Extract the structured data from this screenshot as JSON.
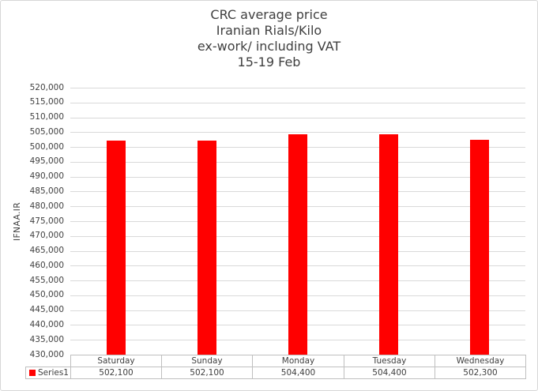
{
  "chart_data": {
    "type": "bar",
    "title": "CRC average price\nIranian Rials/Kilo\nex-work/ including VAT\n15-19 Feb",
    "title_lines": [
      "CRC average price",
      "Iranian Rials/Kilo",
      "ex-work/ including VAT",
      "15-19 Feb"
    ],
    "ylabel": "IFNAA.IR",
    "xlabel": "",
    "categories": [
      "Saturday",
      "Sunday",
      "Monday",
      "Tuesday",
      "Wednesday"
    ],
    "series": [
      {
        "name": "Series1",
        "color": "#FF0000",
        "values": [
          502100,
          502100,
          504400,
          504400,
          502300
        ],
        "value_labels": [
          "502,100",
          "502,100",
          "504,400",
          "504,400",
          "502,300"
        ]
      }
    ],
    "ylim": [
      430000,
      520000
    ],
    "ytick_step": 5000,
    "ytick_labels": [
      "520,000",
      "515,000",
      "510,000",
      "505,000",
      "500,000",
      "495,000",
      "490,000",
      "485,000",
      "480,000",
      "475,000",
      "470,000",
      "465,000",
      "460,000",
      "455,000",
      "450,000",
      "445,000",
      "440,000",
      "435,000",
      "430,000"
    ],
    "grid": true,
    "legend_position": "data-table-left",
    "show_data_table": true
  },
  "colors": {
    "bar": "#FF0000",
    "text": "#404040",
    "gridline": "#D9D9D9",
    "table_border": "#BFBFBF",
    "frame_border": "#D7D7D7"
  }
}
